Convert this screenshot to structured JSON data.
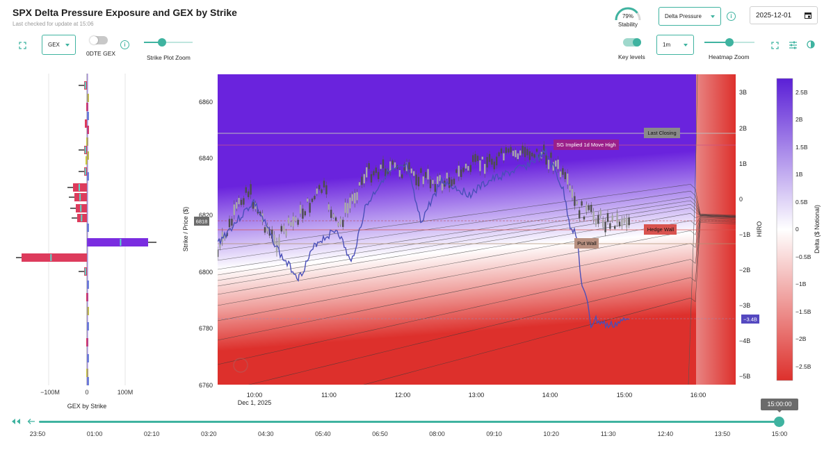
{
  "header": {
    "title": "SPX Delta Pressure Exposure and GEX by Strike",
    "subtitle": "Last checked for update at 15:06"
  },
  "stability": {
    "value_label": "79%",
    "value": 0.79,
    "label": "Stability"
  },
  "mode_dropdown": {
    "value": "Delta Pressure"
  },
  "date_field": {
    "value": "2025-12-01"
  },
  "left_controls": {
    "gex_dropdown": "GEX",
    "odte_label": "0DTE GEX",
    "strike_zoom_label": "Strike Plot Zoom",
    "strike_zoom_value": 0.32
  },
  "right_controls": {
    "key_levels_label": "Key levels",
    "interval_dropdown": "1m",
    "heatmap_zoom_label": "Heatmap Zoom",
    "heatmap_zoom_value": 0.55
  },
  "gex_panel": {
    "title": "GEX by Strike",
    "x_ticks": [
      "−100M",
      "0",
      "100M"
    ]
  },
  "heatmap": {
    "y_axis_label": "Strike / Price ($)",
    "y_ticks": [
      "6860",
      "6840",
      "6820",
      "6800",
      "6780",
      "6760"
    ],
    "x_ticks": [
      "10:00",
      "11:00",
      "12:00",
      "13:00",
      "14:00",
      "15:00",
      "16:00"
    ],
    "x_date": "Dec 1, 2025",
    "current_price_tag": "6818",
    "hiro_label": "HIRO",
    "hiro_ticks": [
      "3B",
      "2B",
      "1B",
      "0",
      "−1B",
      "−2B",
      "−3B",
      "−4B",
      "−5B"
    ],
    "hiro_value_tag": "−3.4B",
    "levels": {
      "last_closing": "Last Closing",
      "sg_implied_high": "SG Implied 1d Move High",
      "hedge_wall": "Hedge Wall",
      "put_wall": "Put Wall"
    },
    "colors": {
      "positive": "#6a23dd",
      "negative": "#dd302c",
      "hiro_line": "#4a4fb8"
    }
  },
  "colorbar": {
    "label": "Delta ($ Notional)",
    "ticks": [
      "2.5B",
      "2B",
      "1.5B",
      "1B",
      "0.5B",
      "0",
      "−0.5B",
      "−1B",
      "−1.5B",
      "−2B",
      "−2.5B"
    ]
  },
  "timeline": {
    "current_time": "15:00:00",
    "ticks": [
      "23:50",
      "01:00",
      "02:10",
      "03:20",
      "04:30",
      "05:40",
      "06:50",
      "08:00",
      "09:10",
      "10:20",
      "11:30",
      "12:40",
      "13:50",
      "15:00"
    ],
    "position": 1.0
  }
}
